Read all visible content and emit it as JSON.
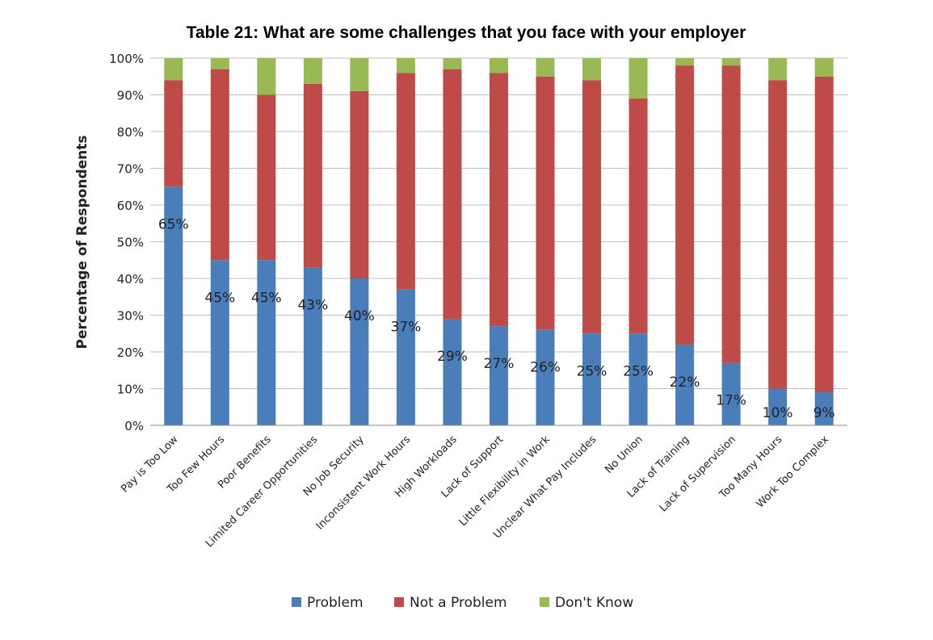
{
  "chart_data": {
    "type": "bar",
    "stacked": true,
    "title": "Table 21: What are some challenges that you face with your employer",
    "ylabel": "Percentage of Respondents",
    "xlabel": "",
    "ylim": [
      0,
      100
    ],
    "yticks": [
      "0%",
      "10%",
      "20%",
      "30%",
      "40%",
      "50%",
      "60%",
      "70%",
      "80%",
      "90%",
      "100%"
    ],
    "grid": true,
    "legend_position": "bottom",
    "categories": [
      "Pay is Too Low",
      "Too Few Hours",
      "Poor Benefits",
      "Limited Career Opportunities",
      "No Job Security",
      "Inconsistent Work Hours",
      "High Workloads",
      "Lack of Support",
      "Little Flexibility in Work",
      "Unclear What Pay Includes",
      "No Union",
      "Lack of Training",
      "Lack of Supervision",
      "Too Many Hours",
      "Work Too Complex"
    ],
    "series": [
      {
        "name": "Problem",
        "color": "#4a7ebb",
        "values": [
          65,
          45,
          45,
          43,
          40,
          37,
          29,
          27,
          26,
          25,
          25,
          22,
          17,
          10,
          9
        ]
      },
      {
        "name": "Not a Problem",
        "color": "#be4b48",
        "values": [
          29,
          52,
          45,
          50,
          51,
          59,
          68,
          69,
          69,
          69,
          64,
          76,
          81,
          84,
          86
        ]
      },
      {
        "name": "Don't Know",
        "color": "#98b954",
        "values": [
          6,
          3,
          10,
          7,
          9,
          4,
          3,
          4,
          5,
          6,
          11,
          2,
          2,
          6,
          5
        ]
      }
    ],
    "data_labels": [
      "65%",
      "45%",
      "45%",
      "43%",
      "40%",
      "37%",
      "29%",
      "27%",
      "26%",
      "25%",
      "25%",
      "22%",
      "17%",
      "10%",
      "9%"
    ]
  }
}
